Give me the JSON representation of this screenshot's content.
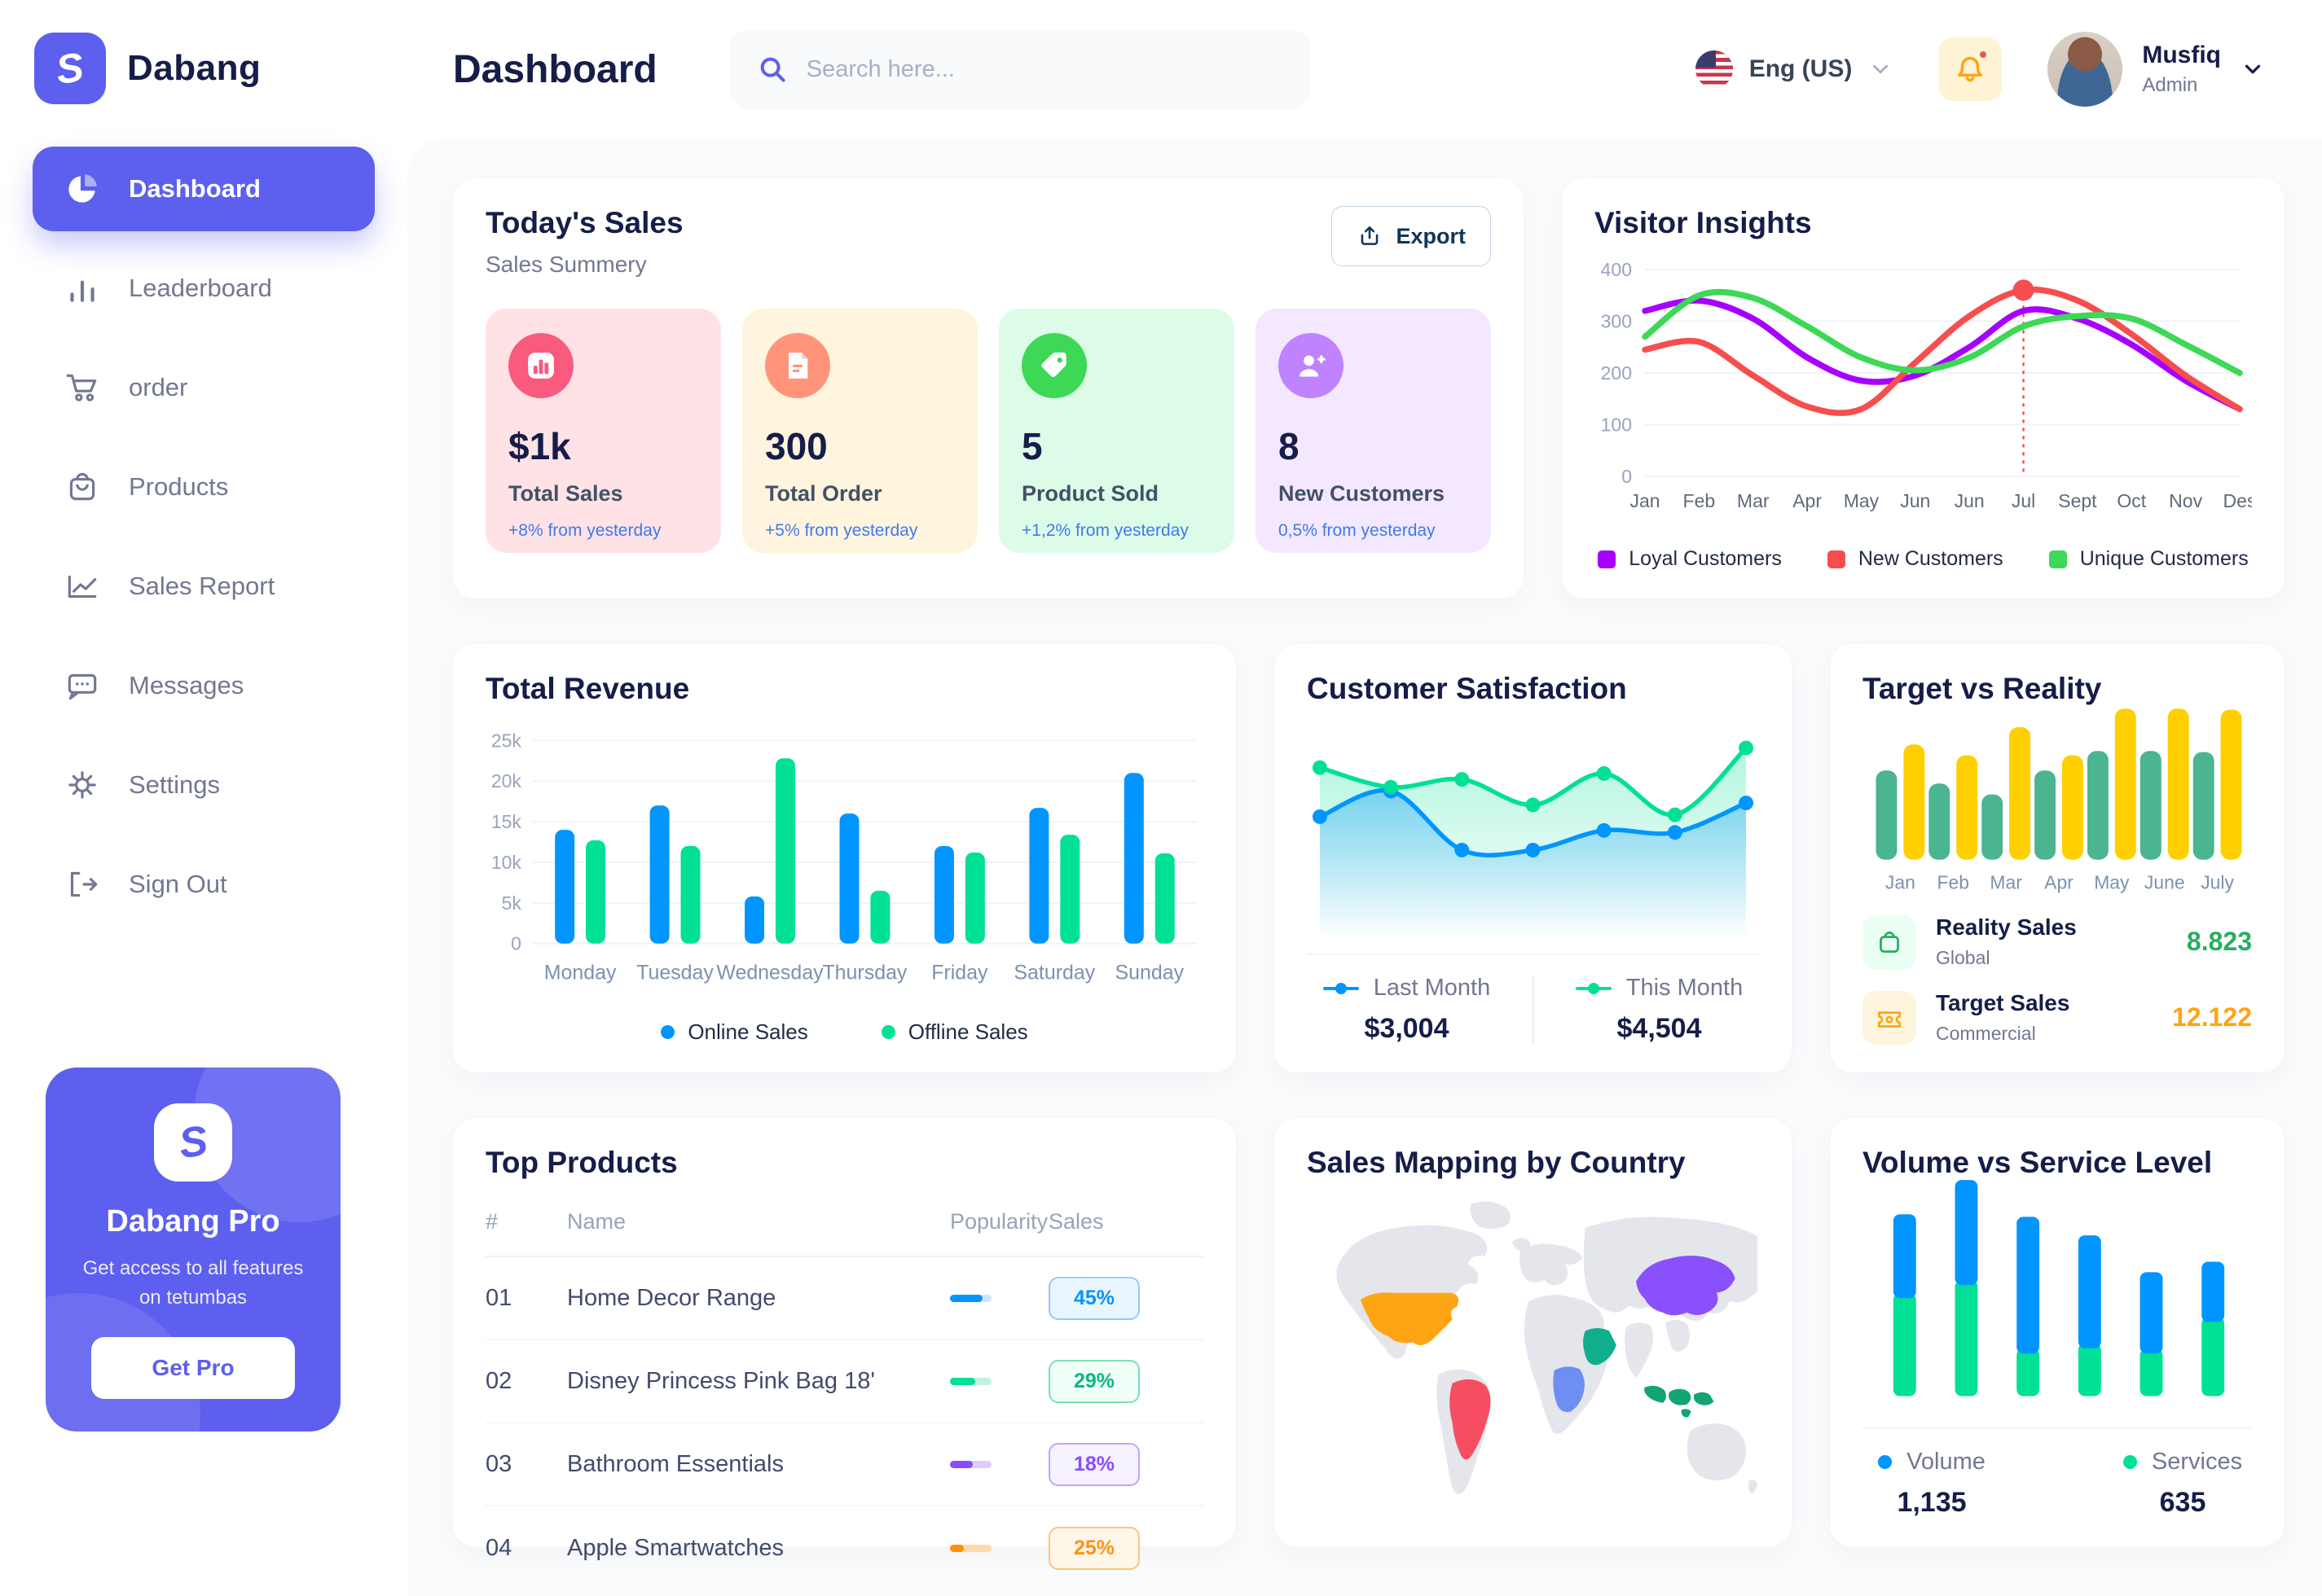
{
  "brand": {
    "name": "Dabang"
  },
  "header": {
    "title": "Dashboard",
    "search_placeholder": "Search here...",
    "language": "Eng (US)",
    "user": {
      "name": "Musfiq",
      "role": "Admin"
    }
  },
  "sidebar": {
    "items": [
      {
        "label": "Dashboard",
        "icon": "pie-chart",
        "active": true
      },
      {
        "label": "Leaderboard",
        "icon": "bar-chart",
        "active": false
      },
      {
        "label": "order",
        "icon": "cart",
        "active": false
      },
      {
        "label": "Products",
        "icon": "bag",
        "active": false
      },
      {
        "label": "Sales Report",
        "icon": "line-chart",
        "active": false
      },
      {
        "label": "Messages",
        "icon": "message",
        "active": false
      },
      {
        "label": "Settings",
        "icon": "gear",
        "active": false
      },
      {
        "label": "Sign Out",
        "icon": "sign-out",
        "active": false
      }
    ],
    "pro": {
      "title": "Dabang Pro",
      "desc": "Get access to all features on tetumbas",
      "cta": "Get Pro"
    }
  },
  "today_sales": {
    "title": "Today's Sales",
    "subtitle": "Sales Summery",
    "export_label": "Export",
    "cards": [
      {
        "value": "$1k",
        "label": "Total Sales",
        "delta": "+8% from yesterday",
        "bg": "#FFE2E5",
        "icon_bg": "#FA5A7D",
        "icon": "chart"
      },
      {
        "value": "300",
        "label": "Total Order",
        "delta": "+5% from yesterday",
        "bg": "#FFF4DE",
        "icon_bg": "#FF947A",
        "icon": "receipt"
      },
      {
        "value": "5",
        "label": "Product Sold",
        "delta": "+1,2% from yesterday",
        "bg": "#DCFCE7",
        "icon_bg": "#3CD856",
        "icon": "tag"
      },
      {
        "value": "8",
        "label": "New Customers",
        "delta": "0,5% from yesterday",
        "bg": "#F3E8FF",
        "icon_bg": "#BF83FF",
        "icon": "user-plus"
      }
    ]
  },
  "chart_data": {
    "visitor_insights": {
      "type": "line",
      "title": "Visitor Insights",
      "categories": [
        "Jan",
        "Feb",
        "Mar",
        "Apr",
        "May",
        "Jun",
        "Jun",
        "Jul",
        "Sept",
        "Oct",
        "Nov",
        "Des"
      ],
      "yticks": [
        0,
        100,
        200,
        300,
        400
      ],
      "ylim": [
        0,
        400
      ],
      "grid": true,
      "legend_position": "bottom",
      "series": [
        {
          "name": "Loyal Customers",
          "color": "#A700FF",
          "values": [
            320,
            340,
            305,
            230,
            185,
            195,
            250,
            320,
            305,
            255,
            185,
            130
          ]
        },
        {
          "name": "New Customers",
          "color": "#F64E4E",
          "values": [
            245,
            260,
            195,
            135,
            130,
            220,
            310,
            360,
            340,
            275,
            195,
            130
          ]
        },
        {
          "name": "Unique Customers",
          "color": "#3CD856",
          "values": [
            270,
            350,
            345,
            290,
            230,
            205,
            230,
            290,
            310,
            305,
            255,
            200
          ]
        }
      ],
      "highlight": {
        "category_index": 7,
        "series": "New Customers",
        "value": 360
      }
    },
    "total_revenue": {
      "type": "bar",
      "title": "Total Revenue",
      "categories": [
        "Monday",
        "Tuesday",
        "Wednesday",
        "Thursday",
        "Friday",
        "Saturday",
        "Sunday"
      ],
      "ytick_labels": [
        "0",
        "5k",
        "10k",
        "15k",
        "20k",
        "25k"
      ],
      "ylim": [
        0,
        25
      ],
      "ylabel": "",
      "xlabel": "",
      "grid": true,
      "legend_position": "bottom",
      "series": [
        {
          "name": "Online Sales",
          "color": "#0095FF",
          "values": [
            14,
            17,
            5.8,
            16,
            12,
            16.7,
            21
          ]
        },
        {
          "name": "Offline Sales",
          "color": "#00E096",
          "values": [
            12.7,
            12,
            22.8,
            6.5,
            11.2,
            13.4,
            11.1
          ]
        }
      ]
    },
    "customer_satisfaction": {
      "type": "area",
      "title": "Customer Satisfaction",
      "x": [
        1,
        2,
        3,
        4,
        5,
        6,
        7
      ],
      "series": [
        {
          "name": "Last Month",
          "total": "$3,004",
          "color": "#0095FF",
          "values": [
            55,
            68,
            38,
            38,
            48,
            47,
            62
          ]
        },
        {
          "name": "This Month",
          "total": "$4,504",
          "color": "#00E096",
          "values": [
            80,
            70,
            74,
            61,
            77,
            56,
            90
          ]
        }
      ]
    },
    "target_vs_reality": {
      "type": "bar",
      "title": "Target vs Reality",
      "categories": [
        "Jan",
        "Feb",
        "Mar",
        "Apr",
        "May",
        "June",
        "July"
      ],
      "series": [
        {
          "name": "Reality Sales",
          "color": "#4AB58E",
          "values": [
            8.2,
            7,
            6,
            8.2,
            10,
            10,
            9.9
          ]
        },
        {
          "name": "Target Sales",
          "color": "#FFCF00",
          "values": [
            10.6,
            9.6,
            12.2,
            9.6,
            13.9,
            13.9,
            13.8
          ]
        }
      ],
      "footer": [
        {
          "label": "Reality Sales",
          "sub": "Global",
          "value": "8.823",
          "value_color": "#27AE60",
          "icon": "bag",
          "icon_bg": "#E9FFF3",
          "icon_color": "#27AE60"
        },
        {
          "label": "Target Sales",
          "sub": "Commercial",
          "value": "12.122",
          "value_color": "#FFA412",
          "icon": "ticket",
          "icon_bg": "#FFF4DE",
          "icon_color": "#FFA412"
        }
      ]
    },
    "volume_vs_service": {
      "type": "stacked-bar",
      "title": "Volume vs Service Level",
      "series": [
        {
          "name": "Volume",
          "color": "#0095FF",
          "total": "1,135",
          "values": [
            300,
            380,
            500,
            410,
            290,
            210
          ]
        },
        {
          "name": "Services",
          "color": "#00E096",
          "total": "635",
          "values": [
            390,
            440,
            180,
            200,
            180,
            300
          ]
        }
      ]
    },
    "top_products": {
      "type": "table",
      "title": "Top Products",
      "headers": [
        "#",
        "Name",
        "Popularity",
        "Sales"
      ],
      "rows": [
        {
          "num": "01",
          "name": "Home Decor Range",
          "sales": "45%",
          "popularity": 0.78,
          "color": "#0095FF",
          "track": "#CDE4FF",
          "badge_bg": "#EAF6FF",
          "badge_border": "#8FCBFF",
          "badge_text": "#0095FF"
        },
        {
          "num": "02",
          "name": "Disney Princess Pink Bag 18'",
          "sales": "29%",
          "popularity": 0.61,
          "color": "#00E096",
          "track": "#BFF3DD",
          "badge_bg": "#EFFEF6",
          "badge_border": "#79E2B2",
          "badge_text": "#0BB885"
        },
        {
          "num": "03",
          "name": "Bathroom Essentials",
          "sales": "18%",
          "popularity": 0.55,
          "color": "#884DFF",
          "track": "#DECBFF",
          "badge_bg": "#F7F2FF",
          "badge_border": "#C2A4FF",
          "badge_text": "#884DFF"
        },
        {
          "num": "04",
          "name": "Apple Smartwatches",
          "sales": "25%",
          "popularity": 0.33,
          "color": "#FF8F0D",
          "track": "#FFD8AB",
          "badge_bg": "#FFF6EA",
          "badge_border": "#FFC37E",
          "badge_text": "#FF9214"
        }
      ]
    },
    "sales_map": {
      "type": "map",
      "title": "Sales Mapping by Country",
      "countries": [
        {
          "name": "United States",
          "color": "#FFA412"
        },
        {
          "name": "Brazil",
          "color": "#F64E60"
        },
        {
          "name": "Saudi Arabia",
          "color": "#0FAF8E"
        },
        {
          "name": "DR Congo",
          "color": "#6E8EF2"
        },
        {
          "name": "China",
          "color": "#8950FC"
        },
        {
          "name": "Indonesia",
          "color": "#12A474"
        }
      ]
    }
  }
}
